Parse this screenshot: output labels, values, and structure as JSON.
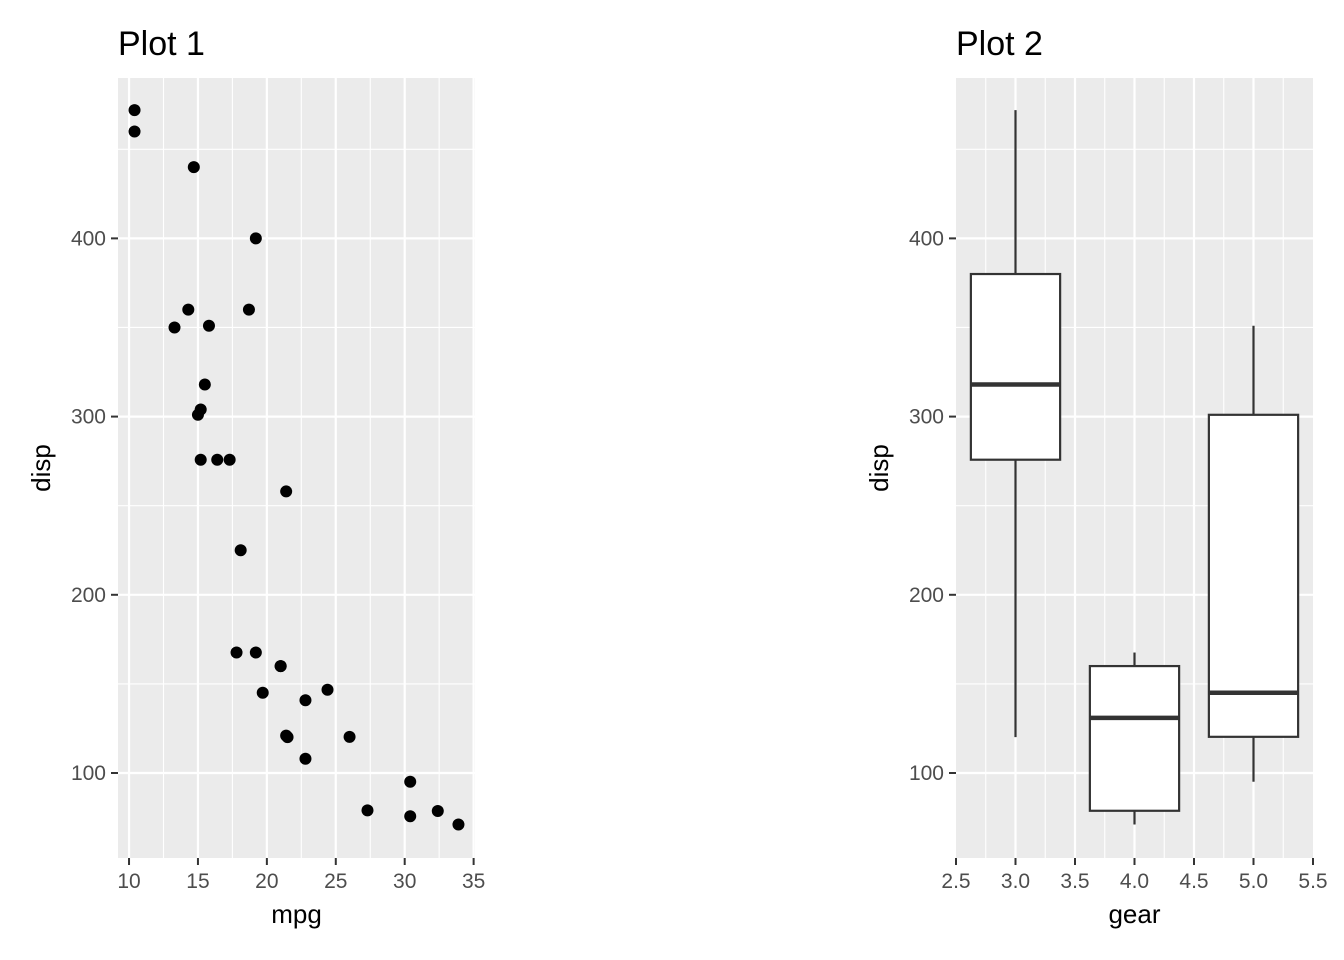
{
  "chart_data": [
    {
      "type": "scatter",
      "title": "Plot 1",
      "xlabel": "mpg",
      "ylabel": "disp",
      "xlim": [
        9.2,
        35.1
      ],
      "ylim": [
        52.3,
        490.0
      ],
      "x_ticks": [
        10,
        15,
        20,
        25,
        30,
        35
      ],
      "y_ticks": [
        100,
        200,
        300,
        400
      ],
      "grid": true,
      "points": [
        {
          "x": 21.0,
          "y": 160
        },
        {
          "x": 21.0,
          "y": 160
        },
        {
          "x": 22.8,
          "y": 108
        },
        {
          "x": 21.4,
          "y": 258
        },
        {
          "x": 18.7,
          "y": 360
        },
        {
          "x": 18.1,
          "y": 225
        },
        {
          "x": 14.3,
          "y": 360
        },
        {
          "x": 24.4,
          "y": 146.7
        },
        {
          "x": 22.8,
          "y": 140.8
        },
        {
          "x": 19.2,
          "y": 167.6
        },
        {
          "x": 17.8,
          "y": 167.6
        },
        {
          "x": 16.4,
          "y": 275.8
        },
        {
          "x": 17.3,
          "y": 275.8
        },
        {
          "x": 15.2,
          "y": 275.8
        },
        {
          "x": 10.4,
          "y": 472
        },
        {
          "x": 10.4,
          "y": 460
        },
        {
          "x": 14.7,
          "y": 440
        },
        {
          "x": 32.4,
          "y": 78.7
        },
        {
          "x": 30.4,
          "y": 75.7
        },
        {
          "x": 33.9,
          "y": 71.1
        },
        {
          "x": 21.5,
          "y": 120.1
        },
        {
          "x": 15.5,
          "y": 318
        },
        {
          "x": 15.2,
          "y": 304
        },
        {
          "x": 13.3,
          "y": 350
        },
        {
          "x": 19.2,
          "y": 400
        },
        {
          "x": 27.3,
          "y": 79
        },
        {
          "x": 26.0,
          "y": 120.3
        },
        {
          "x": 30.4,
          "y": 95.1
        },
        {
          "x": 15.8,
          "y": 351
        },
        {
          "x": 19.7,
          "y": 145
        },
        {
          "x": 15.0,
          "y": 301
        },
        {
          "x": 21.4,
          "y": 121
        }
      ]
    },
    {
      "type": "box",
      "title": "Plot 2",
      "xlabel": "gear",
      "ylabel": "disp",
      "xlim": [
        2.5,
        5.5
      ],
      "ylim": [
        52.3,
        490.0
      ],
      "x_ticks": [
        "2.5",
        "3.0",
        "3.5",
        "4.0",
        "4.5",
        "5.0",
        "5.5"
      ],
      "y_ticks": [
        100,
        200,
        300,
        400
      ],
      "grid": true,
      "boxes": [
        {
          "x": 3.0,
          "min": 120.1,
          "q1": 275.8,
          "median": 318,
          "q3": 380,
          "max": 472
        },
        {
          "x": 4.0,
          "min": 71.1,
          "q1": 78.8,
          "median": 130.9,
          "q3": 160,
          "max": 167.6
        },
        {
          "x": 5.0,
          "min": 95.1,
          "q1": 120.3,
          "median": 145,
          "q3": 301,
          "max": 351
        }
      ]
    }
  ]
}
